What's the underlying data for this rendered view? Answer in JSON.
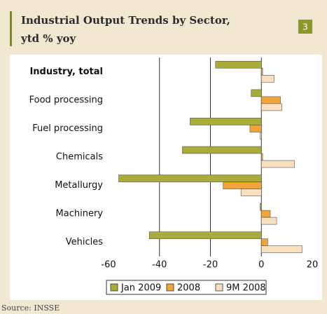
{
  "chart_data": {
    "type": "hbar",
    "title": "Industrial Output Trends by Sector,",
    "title_line2": "ytd % yoy",
    "badge": "3",
    "source": "Source: INSSE",
    "categories": [
      "Industry, total",
      "Food processing",
      "Fuel processing",
      "Chemicals",
      "Metallurgy",
      "Machinery",
      "Vehicles"
    ],
    "series": [
      {
        "name": "Jan 2009",
        "color": "#a9ab3b",
        "values": [
          -18,
          -4,
          -28,
          -31,
          -56,
          -0.5,
          -44
        ]
      },
      {
        "name": "2008",
        "color": "#f0a43a",
        "values": [
          0.5,
          7.5,
          -4.5,
          0.5,
          -15,
          3.5,
          2.5
        ]
      },
      {
        "name": "9M 2008",
        "color": "#f8dfbd",
        "values": [
          5,
          8,
          -0.5,
          13,
          -8,
          6,
          16
        ]
      }
    ],
    "xlim": [
      -60,
      20
    ],
    "xticks": [
      -60,
      -40,
      -20,
      0,
      20
    ],
    "grid": true
  }
}
